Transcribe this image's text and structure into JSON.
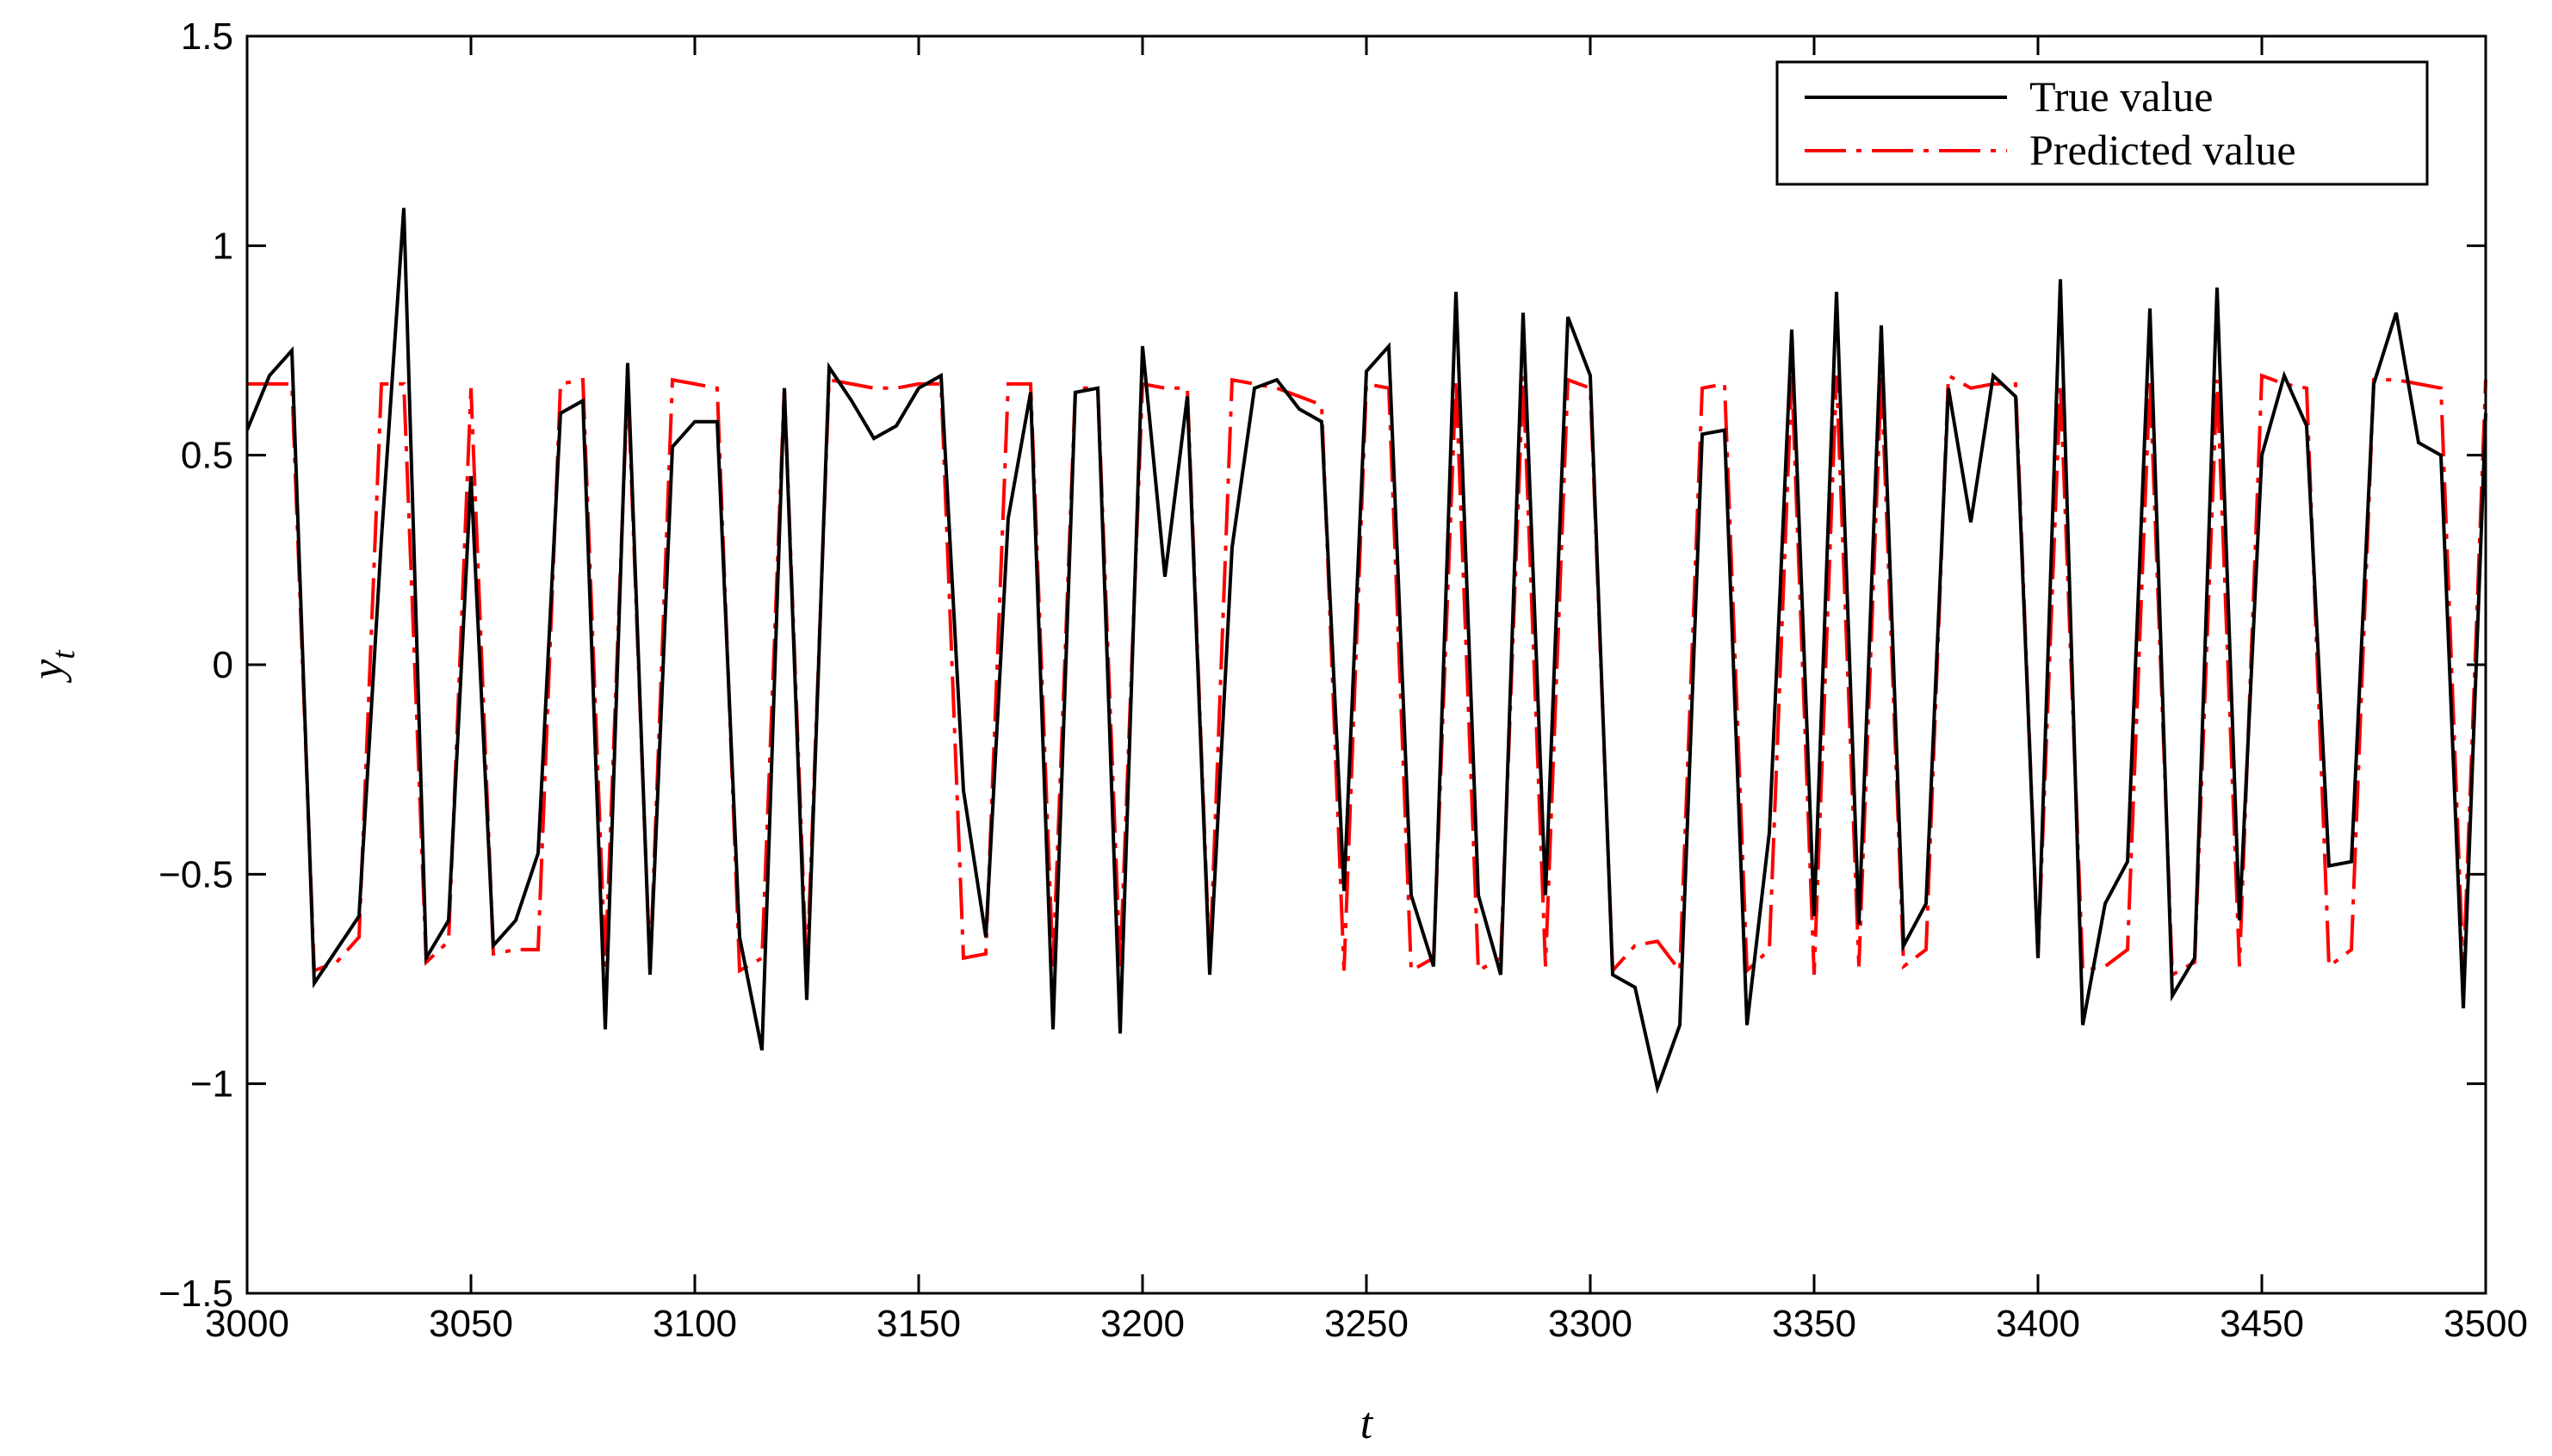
{
  "chart_data": {
    "type": "line",
    "xlabel": "t",
    "ylabel": "y",
    "ylabel_subscript": "t",
    "xlim": [
      3000,
      3500
    ],
    "ylim": [
      -1.5,
      1.5
    ],
    "xticks": [
      "3000",
      "3050",
      "3100",
      "3150",
      "3200",
      "3250",
      "3300",
      "3350",
      "3400",
      "3450",
      "3500"
    ],
    "yticks": [
      "1.5",
      "1",
      "0.5",
      "0",
      "−0.5",
      "−1",
      "−1.5"
    ],
    "grid": false,
    "legend_position": "top-right",
    "x": [
      3000,
      3005,
      3010,
      3015,
      3020,
      3025,
      3030,
      3035,
      3040,
      3045,
      3050,
      3055,
      3060,
      3065,
      3070,
      3075,
      3080,
      3085,
      3090,
      3095,
      3100,
      3105,
      3110,
      3115,
      3120,
      3125,
      3130,
      3135,
      3140,
      3145,
      3150,
      3155,
      3160,
      3165,
      3170,
      3175,
      3180,
      3185,
      3190,
      3195,
      3200,
      3205,
      3210,
      3215,
      3220,
      3225,
      3230,
      3235,
      3240,
      3245,
      3250,
      3255,
      3260,
      3265,
      3270,
      3275,
      3280,
      3285,
      3290,
      3295,
      3300,
      3305,
      3310,
      3315,
      3320,
      3325,
      3330,
      3335,
      3340,
      3345,
      3350,
      3355,
      3360,
      3365,
      3370,
      3375,
      3380,
      3385,
      3390,
      3395,
      3400,
      3405,
      3410,
      3415,
      3420,
      3425,
      3430,
      3435,
      3440,
      3445,
      3450,
      3455,
      3460,
      3465,
      3470,
      3475,
      3480,
      3485,
      3490,
      3495,
      3500
    ],
    "series": [
      {
        "name": "True value",
        "color": "#000000",
        "style": "solid",
        "values": [
          0.56,
          0.69,
          0.75,
          -0.76,
          -0.68,
          -0.6,
          0.3,
          1.09,
          -0.7,
          -0.61,
          0.45,
          -0.67,
          -0.61,
          -0.45,
          0.6,
          0.63,
          -0.87,
          0.72,
          -0.74,
          0.52,
          0.58,
          0.58,
          -0.65,
          -0.92,
          0.66,
          -0.8,
          0.71,
          0.63,
          0.54,
          0.57,
          0.66,
          0.69,
          -0.3,
          -0.65,
          0.35,
          0.65,
          -0.87,
          0.65,
          0.66,
          -0.88,
          0.76,
          0.21,
          0.64,
          -0.74,
          0.28,
          0.66,
          0.68,
          0.61,
          0.58,
          -0.54,
          0.7,
          0.76,
          -0.55,
          -0.72,
          0.89,
          -0.55,
          -0.74,
          0.84,
          -0.55,
          0.83,
          0.69,
          -0.74,
          -0.77,
          -1.01,
          -0.86,
          0.55,
          0.56,
          -0.86,
          -0.4,
          0.8,
          -0.6,
          0.89,
          -0.62,
          0.81,
          -0.67,
          -0.57,
          0.66,
          0.34,
          0.69,
          0.64,
          -0.7,
          0.92,
          -0.86,
          -0.57,
          -0.47,
          0.85,
          -0.79,
          -0.7,
          0.9,
          -0.61,
          0.5,
          0.69,
          0.57,
          -0.48,
          -0.47,
          0.67,
          0.84,
          0.53,
          0.5,
          -0.82,
          0.6
        ]
      },
      {
        "name": "Predicted value",
        "color": "#ff0000",
        "style": "dashdot",
        "values": [
          0.67,
          0.67,
          0.67,
          -0.73,
          -0.71,
          -0.65,
          0.67,
          0.67,
          -0.71,
          -0.66,
          0.66,
          -0.69,
          -0.68,
          -0.68,
          0.67,
          0.68,
          -0.72,
          0.68,
          -0.73,
          0.68,
          0.67,
          0.66,
          -0.73,
          -0.7,
          0.66,
          -0.74,
          0.68,
          0.67,
          0.66,
          0.66,
          0.67,
          0.67,
          -0.7,
          -0.69,
          0.67,
          0.67,
          -0.72,
          0.66,
          0.66,
          -0.72,
          0.67,
          0.66,
          0.66,
          -0.72,
          0.68,
          0.67,
          0.66,
          0.64,
          0.62,
          -0.73,
          0.67,
          0.66,
          -0.73,
          -0.7,
          0.68,
          -0.73,
          -0.7,
          0.69,
          -0.72,
          0.68,
          0.66,
          -0.73,
          -0.67,
          -0.66,
          -0.73,
          0.66,
          0.67,
          -0.73,
          -0.68,
          0.69,
          -0.74,
          0.69,
          -0.72,
          0.69,
          -0.72,
          -0.68,
          0.69,
          0.66,
          0.67,
          0.67,
          -0.7,
          0.67,
          -0.73,
          -0.72,
          -0.68,
          0.68,
          -0.74,
          -0.71,
          0.68,
          -0.72,
          0.69,
          0.67,
          0.66,
          -0.72,
          -0.68,
          0.68,
          0.68,
          0.67,
          0.66,
          -0.74,
          0.68
        ]
      }
    ]
  }
}
